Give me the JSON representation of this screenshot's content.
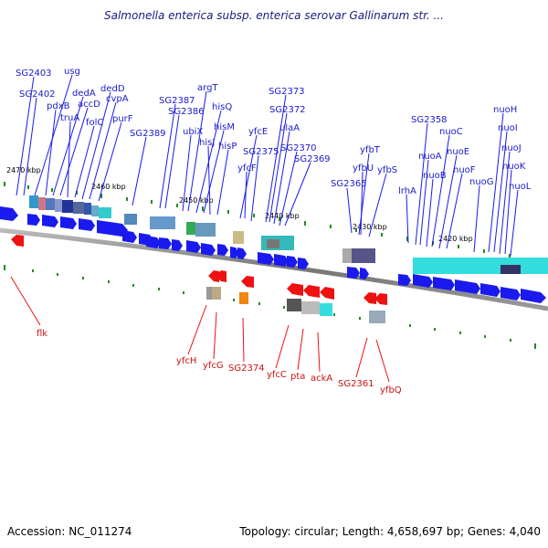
{
  "title": "Salmonella enterica subsp. enterica serovar Gallinarum str. ...",
  "footer": {
    "accession": "Accession: NC_011274",
    "summary": "Topology: circular; Length: 4,658,697 bp; Genes: 4,040"
  },
  "colors": {
    "forward_gene": "#1a1aee",
    "reverse_gene": "#ee1111",
    "backbone": "#888888",
    "tick": "#228b22",
    "cyan_region": "#33dddd"
  },
  "position_labels": [
    "2470 kbp",
    "2460 kbp",
    "2450 kbp",
    "2440 kbp",
    "2430 kbp",
    "2420 kbp"
  ],
  "forward_labels": [
    "SG2403",
    "usg",
    "SG2402",
    "pdxB",
    "dedA",
    "accD",
    "truA",
    "folC",
    "dedD",
    "cvpA",
    "purF",
    "SG2389",
    "SG2387",
    "SG2386",
    "ubiX",
    "argT",
    "hisQ",
    "hisM",
    "hisJ",
    "hisP",
    "yfcE",
    "yfcF",
    "SG2375",
    "SG2373",
    "SG2372",
    "ulaA",
    "SG2370",
    "SG2369",
    "SG2365",
    "yfbT",
    "yfbU",
    "yfbS",
    "lrhA",
    "SG2358",
    "nuoA",
    "nuoB",
    "nuoC",
    "nuoE",
    "nuoF",
    "nuoG",
    "nuoH",
    "nuoI",
    "nuoJ",
    "nuoK",
    "nuoL"
  ],
  "reverse_labels": [
    "flk",
    "yfcH",
    "yfcG",
    "SG2374",
    "yfcC",
    "pta",
    "ackA",
    "SG2361",
    "yfbQ"
  ]
}
